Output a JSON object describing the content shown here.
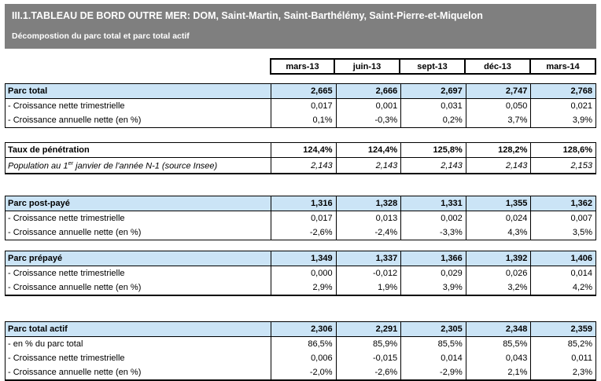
{
  "header": {
    "title": "III.1.TABLEAU DE BORD OUTRE MER: DOM, Saint-Martin, Saint-Barthélémy, Saint-Pierre-et-Miquelon",
    "subtitle": "Décompostion du parc total et parc total actif"
  },
  "columns": [
    "mars-13",
    "juin-13",
    "sept-13",
    "déc-13",
    "mars-14"
  ],
  "colors": {
    "title_bar_bg": "#7F7F7F",
    "title_text": "#FFFFFF",
    "section_header_bg": "#CBE4F6",
    "border": "#000000"
  },
  "sections": [
    {
      "name": "parc-total",
      "rows": [
        {
          "label": "Parc total",
          "values": [
            "2,665",
            "2,666",
            "2,697",
            "2,747",
            "2,768"
          ]
        },
        {
          "label": "- Croissance nette trimestrielle",
          "values": [
            "0,017",
            "0,001",
            "0,031",
            "0,050",
            "0,021"
          ]
        },
        {
          "label": "- Croissance annuelle nette (en %)",
          "values": [
            "0,1%",
            "-0,3%",
            "0,2%",
            "3,7%",
            "3,9%"
          ]
        }
      ]
    },
    {
      "name": "taux-de-penetration",
      "rows": [
        {
          "label": "Taux de pénétration",
          "values": [
            "124,4%",
            "124,4%",
            "125,8%",
            "128,2%",
            "128,6%"
          ]
        },
        {
          "label_pre": "Population au 1",
          "label_sup": "er",
          "label_post": " janvier de l'année N-1 (source Insee)",
          "values": [
            "2,143",
            "2,143",
            "2,143",
            "2,143",
            "2,153"
          ]
        }
      ]
    },
    {
      "name": "parc-post-paye",
      "rows": [
        {
          "label": "Parc post-payé",
          "values": [
            "1,316",
            "1,328",
            "1,331",
            "1,355",
            "1,362"
          ]
        },
        {
          "label": "- Croissance nette trimestrielle",
          "values": [
            "0,017",
            "0,013",
            "0,002",
            "0,024",
            "0,007"
          ]
        },
        {
          "label": "- Croissance annuelle nette (en %)",
          "values": [
            "-2,6%",
            "-2,4%",
            "-3,3%",
            "4,3%",
            "3,5%"
          ]
        }
      ]
    },
    {
      "name": "parc-prepaye",
      "rows": [
        {
          "label": "Parc prépayé",
          "values": [
            "1,349",
            "1,337",
            "1,366",
            "1,392",
            "1,406"
          ]
        },
        {
          "label": "- Croissance nette trimestrielle",
          "values": [
            "0,000",
            "-0,012",
            "0,029",
            "0,026",
            "0,014"
          ]
        },
        {
          "label": "- Croissance annuelle nette (en %)",
          "values": [
            "2,9%",
            "1,9%",
            "3,9%",
            "3,2%",
            "4,2%"
          ]
        }
      ]
    },
    {
      "name": "parc-total-actif",
      "rows": [
        {
          "label": "Parc total actif",
          "values": [
            "2,306",
            "2,291",
            "2,305",
            "2,348",
            "2,359"
          ]
        },
        {
          "label": "- en % du parc total",
          "values": [
            "86,5%",
            "85,9%",
            "85,5%",
            "85,5%",
            "85,2%"
          ]
        },
        {
          "label": "- Croissance nette trimestrielle",
          "values": [
            "0,006",
            "-0,015",
            "0,014",
            "0,043",
            "0,011"
          ]
        },
        {
          "label": "- Croissance annuelle nette (en %)",
          "values": [
            "-2,0%",
            "-2,6%",
            "-2,9%",
            "2,1%",
            "2,3%"
          ]
        }
      ]
    }
  ]
}
